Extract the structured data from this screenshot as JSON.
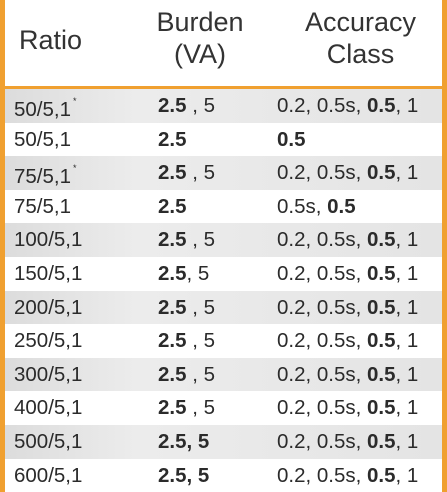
{
  "header": {
    "ratio": "Ratio",
    "burden_line1": "Burden",
    "burden_line2": "(VA)",
    "accuracy_line1": "Accuracy",
    "accuracy_line2": "Class"
  },
  "rows": [
    {
      "ratio": "50/5,1",
      "mark": "*",
      "burden_bold": "2.5",
      "burden_rest": " , 5",
      "acc_plain": "0.2, 0.5s, ",
      "acc_bold": "0.5",
      "acc_tail": ", 1"
    },
    {
      "ratio": "50/5,1",
      "mark": "",
      "burden_bold": "2.5",
      "burden_rest": "",
      "acc_plain": "",
      "acc_bold": "0.5",
      "acc_tail": ""
    },
    {
      "ratio": "75/5,1",
      "mark": "*",
      "burden_bold": "2.5",
      "burden_rest": " , 5",
      "acc_plain": "0.2, 0.5s, ",
      "acc_bold": "0.5",
      "acc_tail": ", 1"
    },
    {
      "ratio": "75/5,1",
      "mark": "",
      "burden_bold": "2.5",
      "burden_rest": "",
      "acc_plain": "0.5s, ",
      "acc_bold": "0.5",
      "acc_tail": ""
    },
    {
      "ratio": "100/5,1",
      "mark": "",
      "burden_bold": "2.5",
      "burden_rest": " , 5",
      "acc_plain": "0.2, 0.5s, ",
      "acc_bold": "0.5",
      "acc_tail": ", 1"
    },
    {
      "ratio": "150/5,1",
      "mark": "",
      "burden_bold": "2.5",
      "burden_rest": ", 5",
      "acc_plain": "0.2, 0.5s, ",
      "acc_bold": "0.5",
      "acc_tail": ", 1"
    },
    {
      "ratio": "200/5,1",
      "mark": "",
      "burden_bold": "2.5",
      "burden_rest": " , 5",
      "acc_plain": "0.2, 0.5s, ",
      "acc_bold": "0.5",
      "acc_tail": ", 1"
    },
    {
      "ratio": "250/5,1",
      "mark": "",
      "burden_bold": "2.5",
      "burden_rest": " , 5",
      "acc_plain": "0.2, 0.5s, ",
      "acc_bold": "0.5",
      "acc_tail": ", 1"
    },
    {
      "ratio": "300/5,1",
      "mark": "",
      "burden_bold": "2.5",
      "burden_rest": " , 5",
      "acc_plain": "0.2, 0.5s, ",
      "acc_bold": "0.5",
      "acc_tail": ", 1"
    },
    {
      "ratio": "400/5,1",
      "mark": "",
      "burden_bold": "2.5",
      "burden_rest": " , 5",
      "acc_plain": "0.2, 0.5s, ",
      "acc_bold": "0.5",
      "acc_tail": ", 1"
    },
    {
      "ratio": "500/5,1",
      "mark": "",
      "burden_bold": "2.5, 5",
      "burden_rest": "",
      "acc_plain": "0.2, 0.5s, ",
      "acc_bold": "0.5",
      "acc_tail": ", 1"
    },
    {
      "ratio": "600/5,1",
      "mark": "",
      "burden_bold": "2.5, 5",
      "burden_rest": "",
      "acc_plain": "0.2, 0.5s, ",
      "acc_bold": "0.5",
      "acc_tail": ", 1"
    }
  ],
  "colors": {
    "accent": "#f0a030",
    "row_shade": "#e4e4e4",
    "text": "#2b2b2b"
  }
}
